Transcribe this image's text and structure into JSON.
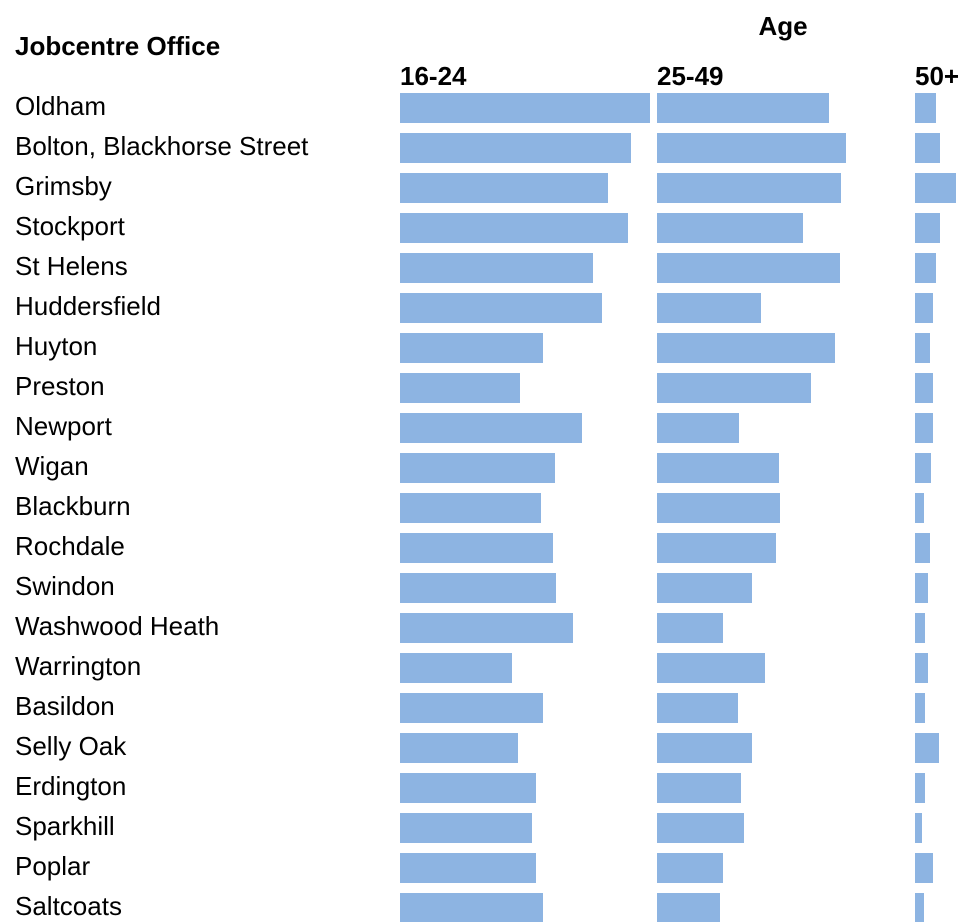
{
  "chart_data": {
    "type": "bar",
    "category_label": "Jobcentre Office",
    "series_title": "Age",
    "categories": [
      "Oldham",
      "Bolton, Blackhorse Street",
      "Grimsby",
      "Stockport",
      "St Helens",
      "Huddersfield",
      "Huyton",
      "Preston",
      "Newport",
      "Wigan",
      "Blackburn",
      "Rochdale",
      "Swindon",
      "Washwood Heath",
      "Warrington",
      "Basildon",
      "Selly Oak",
      "Erdington",
      "Sparkhill",
      "Poplar",
      "Saltcoats"
    ],
    "series": [
      {
        "name": "16-24",
        "color": "#8db4e2",
        "values": [
          250,
          231,
          208,
          228,
          193,
          202,
          143,
          120,
          182,
          155,
          141,
          153,
          156,
          173,
          112,
          143,
          118,
          136,
          132,
          136,
          143
        ]
      },
      {
        "name": "25-49",
        "color": "#8db4e2",
        "values": [
          172,
          189,
          184,
          146,
          183,
          104,
          178,
          154,
          82,
          122,
          123,
          119,
          95,
          66,
          108,
          81,
          95,
          84,
          87,
          66,
          63
        ]
      },
      {
        "name": "50+",
        "color": "#8db4e2",
        "values": [
          21,
          25,
          41,
          25,
          21,
          18,
          15,
          18,
          18,
          16,
          9,
          15,
          13,
          10,
          13,
          10,
          24,
          10,
          7,
          18,
          9
        ]
      }
    ],
    "xlim": [
      0,
      250
    ]
  }
}
